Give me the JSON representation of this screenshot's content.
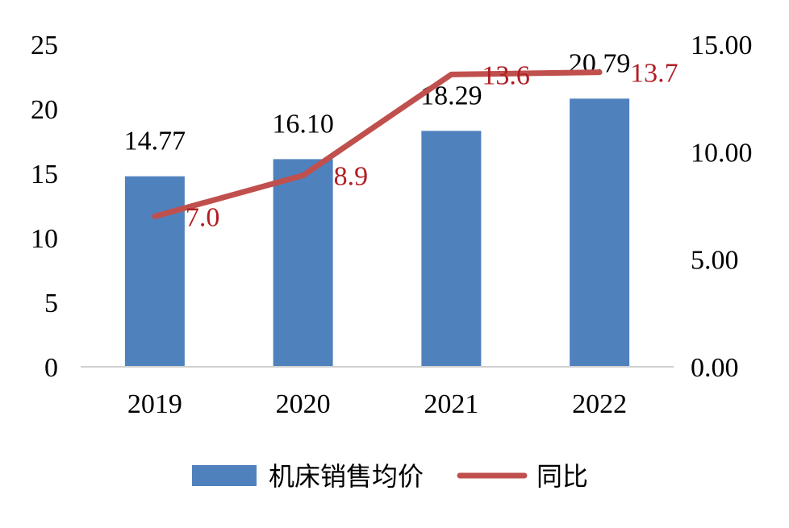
{
  "chart_data": {
    "type": "bar",
    "categories": [
      "2019",
      "2020",
      "2021",
      "2022"
    ],
    "series": [
      {
        "name": "机床销售均价",
        "type": "bar",
        "axis": "left",
        "values": [
          14.77,
          16.1,
          18.29,
          20.79
        ],
        "labels": [
          "14.77",
          "16.10",
          "18.29",
          "20.79"
        ],
        "color": "#4f81bd"
      },
      {
        "name": "同比",
        "type": "line",
        "axis": "right",
        "values": [
          7.0,
          8.9,
          13.6,
          13.7
        ],
        "labels": [
          "7.0",
          "8.9",
          "13.6",
          "13.7"
        ],
        "color": "#c0504d",
        "label_color": "#b01e24"
      }
    ],
    "y_left": {
      "ylim": [
        0,
        25
      ],
      "ticks": [
        "0",
        "5",
        "10",
        "15",
        "20",
        "25"
      ]
    },
    "y_right": {
      "ylim": [
        0,
        15
      ],
      "ticks": [
        "0.00",
        "5.00",
        "10.00",
        "15.00"
      ]
    },
    "legend": "bottom",
    "grid": false
  }
}
